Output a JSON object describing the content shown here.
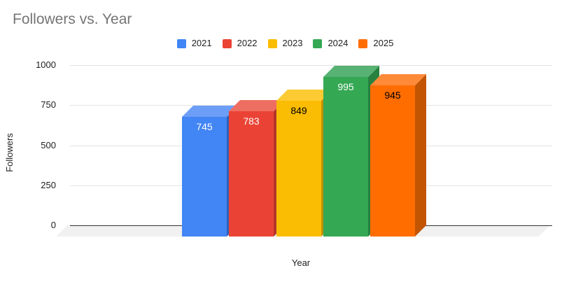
{
  "chart_data": {
    "type": "bar",
    "style": "3d-column",
    "title": "Followers vs. Year",
    "xlabel": "Year",
    "ylabel": "Followers",
    "categories": [
      "2021",
      "2022",
      "2023",
      "2024",
      "2025"
    ],
    "values": [
      745,
      783,
      849,
      995,
      945
    ],
    "ylim": [
      0,
      1000
    ],
    "yticks": [
      0,
      250,
      500,
      750,
      1000
    ],
    "grid": true,
    "legend": {
      "position": "top",
      "entries": [
        "2021",
        "2022",
        "2023",
        "2024",
        "2025"
      ]
    },
    "bar_colors": [
      {
        "front": "#4285F4",
        "top": "#6D9EF7",
        "side": "#2A62BC",
        "label": "#FFFFFF"
      },
      {
        "front": "#EA4335",
        "top": "#EE6E62",
        "side": "#B33629",
        "label": "#FFFFFF"
      },
      {
        "front": "#FBBC04",
        "top": "#FCCB33",
        "side": "#C29103",
        "label": "#000000"
      },
      {
        "front": "#34A853",
        "top": "#57B273",
        "side": "#27813F",
        "label": "#FFFFFF"
      },
      {
        "front": "#FF6D01",
        "top": "#FF8A38",
        "side": "#C25502",
        "label": "#000000"
      }
    ],
    "theme": {
      "background": "#FFFFFF",
      "title_color": "#757575",
      "axis_text_color": "#202124",
      "gridline_color": "#E3E3E3",
      "baseline_color": "#333333",
      "floor_color": "#F1F1F1"
    }
  }
}
